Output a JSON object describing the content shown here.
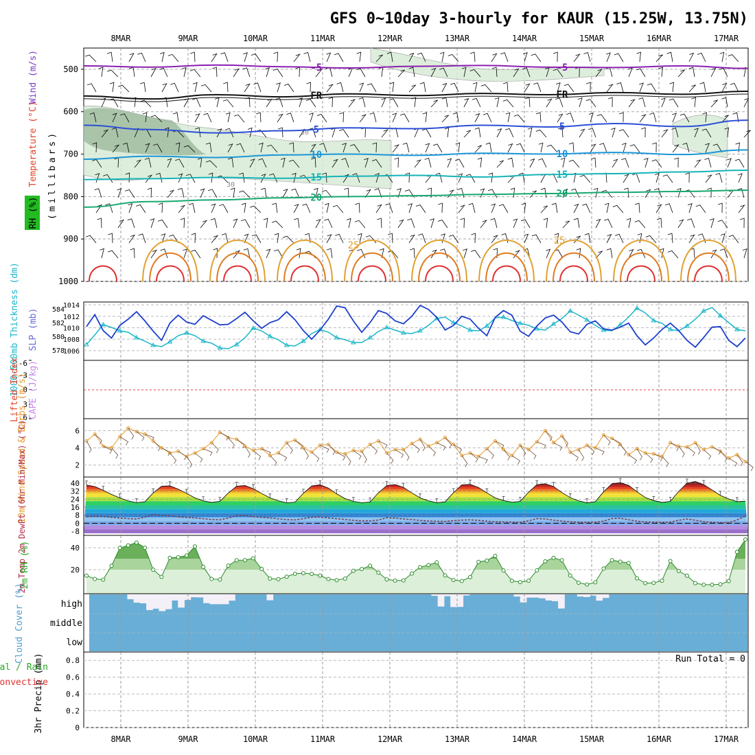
{
  "chart_data": {
    "type": "meteogram",
    "title": "GFS 0~10day 3-hourly for KAUR (15.25W, 13.75N)",
    "dates": [
      "8MAR",
      "9MAR",
      "10MAR",
      "11MAR",
      "12MAR",
      "13MAR",
      "14MAR",
      "15MAR",
      "16MAR",
      "17MAR"
    ],
    "sounding": {
      "ylabel": "(millibars)",
      "legend": [
        "RH (%)",
        "Temperature (°C)",
        "Wind (m/s)"
      ],
      "legend_colors": [
        "#22aa22",
        "#e0442a",
        "#8844cc"
      ],
      "pressure_ticks": [
        500,
        600,
        700,
        800,
        900,
        1000
      ],
      "ylim": [
        450,
        1000
      ],
      "isotherms": [
        {
          "label": "-5",
          "color": "#8b1fb0",
          "p": [
            492,
            495,
            490,
            494,
            497,
            493,
            491,
            495,
            496,
            492,
            498
          ]
        },
        {
          "label": "FR",
          "color": "#111111",
          "p": [
            563,
            570,
            560,
            565,
            558,
            562,
            557,
            560,
            555,
            559,
            552
          ]
        },
        {
          "label": "5",
          "color": "#2c4fd6",
          "p": [
            632,
            642,
            650,
            645,
            638,
            640,
            632,
            636,
            628,
            635,
            620
          ]
        },
        {
          "label": "10",
          "color": "#1b96d8",
          "p": [
            712,
            705,
            708,
            702,
            700,
            703,
            698,
            700,
            696,
            701,
            690
          ]
        },
        {
          "label": "15",
          "color": "#15b3b8",
          "p": [
            760,
            758,
            755,
            757,
            752,
            750,
            754,
            748,
            746,
            742,
            738
          ]
        },
        {
          "label": "20",
          "color": "#16a870",
          "p": [
            825,
            812,
            808,
            803,
            800,
            798,
            795,
            793,
            790,
            788,
            785
          ]
        }
      ],
      "rh_labels": [
        "30",
        "30"
      ]
    },
    "thickness_slp": {
      "ylabel_left": "1000-500mb Thickness (dm)",
      "ylabel_right": "SLP (mb)",
      "left_ticks": [
        578,
        580,
        582,
        584
      ],
      "right_ticks": [
        1006,
        1008,
        1010,
        1012,
        1014
      ],
      "thickness_dm": [
        578.8,
        580.2,
        581.7,
        581.3,
        580.8,
        580.6,
        579.8,
        579.3,
        578.7,
        578.5,
        579.2,
        580.1,
        580.5,
        580.1,
        579.3,
        579.0,
        578.3,
        578.2,
        578.8,
        579.8,
        581.2,
        580.8,
        580.0,
        579.5,
        578.7,
        578.6,
        579.3,
        580.4,
        581.0,
        580.6,
        579.8,
        579.5,
        579.1,
        579.1,
        579.8,
        580.7,
        581.3,
        580.9,
        580.5,
        580.4,
        580.8,
        581.6,
        582.6,
        582.8,
        582.0,
        581.5,
        580.9,
        580.8,
        581.5,
        582.7,
        582.8,
        582.3,
        581.9,
        581.6,
        581.1,
        580.9,
        581.8,
        582.6,
        583.7,
        583.1,
        582.4,
        581.6,
        580.9,
        580.8,
        581.7,
        582.8,
        584.1,
        583.4,
        582.3,
        581.9,
        581.0,
        580.8,
        581.5,
        582.5,
        583.7,
        584.2,
        583.0,
        582.0,
        581.0,
        580.8
      ],
      "slp_mb": [
        1010.2,
        1012.3,
        1009.5,
        1008.2,
        1010.4,
        1011.5,
        1012.8,
        1011.2,
        1009.4,
        1007.8,
        1010.8,
        1012.2,
        1011.0,
        1010.6,
        1012.1,
        1011.3,
        1010.5,
        1010.6,
        1011.6,
        1012.7,
        1011.2,
        1009.9,
        1010.9,
        1011.4,
        1012.8,
        1011.4,
        1009.5,
        1008.0,
        1009.6,
        1011.5,
        1013.8,
        1013.5,
        1011.2,
        1009.2,
        1010.9,
        1013.0,
        1012.5,
        1011.2,
        1010.7,
        1012.0,
        1013.9,
        1013.2,
        1011.8,
        1009.6,
        1010.4,
        1012.0,
        1011.5,
        1009.9,
        1008.6,
        1011.8,
        1013.0,
        1012.2,
        1009.4,
        1008.5,
        1010.3,
        1011.7,
        1012.2,
        1011.0,
        1009.3,
        1008.9,
        1010.6,
        1011.2,
        1009.8,
        1009.6,
        1010.1,
        1010.8,
        1008.6,
        1007.0,
        1008.2,
        1009.7,
        1010.8,
        1009.5,
        1007.8,
        1006.6,
        1008.3,
        1010.1,
        1010.2,
        1007.8,
        1006.7,
        1008.2
      ]
    },
    "cape_li": {
      "ylabel_left": "Lifted Index",
      "ylabel_right": "CAPE (J/kg)",
      "li_ticks": [
        -6,
        -3,
        0,
        3,
        6
      ],
      "li_ticks_text": [
        "-6",
        "-3",
        "0",
        "3",
        "6"
      ]
    },
    "wind10m": {
      "ylabel": "10m Wind Speed & Barbs (m/s)",
      "ticks": [
        2,
        4,
        6
      ],
      "speed_ms": [
        4.8,
        5.6,
        4.2,
        4.0,
        5.3,
        6.3,
        5.9,
        5.6,
        4.8,
        4.0,
        3.4,
        3.6,
        3.0,
        3.4,
        3.9,
        4.6,
        5.8,
        5.2,
        5.0,
        4.2,
        3.7,
        3.9,
        3.1,
        3.4,
        4.6,
        4.9,
        4.0,
        3.5,
        4.3,
        4.4,
        3.5,
        3.3,
        3.7,
        3.6,
        4.4,
        4.8,
        3.4,
        3.8,
        3.8,
        4.5,
        5.0,
        4.2,
        4.6,
        5.2,
        4.4,
        3.1,
        3.4,
        3.0,
        3.9,
        4.8,
        3.8,
        3.1,
        4.3,
        3.8,
        4.7,
        6.0,
        4.6,
        5.4,
        3.5,
        3.8,
        4.3,
        4.0,
        5.5,
        5.1,
        4.4,
        3.2,
        3.9,
        3.4,
        3.3,
        3.0,
        4.6,
        4.2,
        4.1,
        4.6,
        3.8,
        4.1,
        3.6,
        2.8,
        3.2,
        2.4
      ]
    },
    "temp2m": {
      "ylabel": "2m Temp 2m DewPt (6hr Min/Max) (°C)",
      "ticks": [
        -8,
        0,
        8,
        16,
        24,
        32,
        40
      ],
      "ticks_text": [
        "-8",
        "0",
        "8",
        "16",
        "24",
        "32",
        "40"
      ],
      "temp_c": [
        38.0,
        36.6,
        32.9,
        28.7,
        25.2,
        22.3,
        20.5,
        21.5,
        30.2,
        36.9,
        37.2,
        34.0,
        29.7,
        25.3,
        22.3,
        20.8,
        21.8,
        30.1,
        36.9,
        37.6,
        34.4,
        29.7,
        25.3,
        22.4,
        20.4,
        21.0,
        29.8,
        37.2,
        38.3,
        35.0,
        29.2,
        24.6,
        21.8,
        20.5,
        21.2,
        30.3,
        37.5,
        38.6,
        35.7,
        30.3,
        25.3,
        22.4,
        20.4,
        21.4,
        30.4,
        38.3,
        38.8,
        35.6,
        30.3,
        25.3,
        22.6,
        21.0,
        21.8,
        30.9,
        38.4,
        39.4,
        36.6,
        30.6,
        25.5,
        22.4,
        20.3,
        21.5,
        31.3,
        39.4,
        40.5,
        37.8,
        31.4,
        25.6,
        22.6,
        20.8,
        21.8,
        31.7,
        40.0,
        41.6,
        38.5,
        33.2,
        27.7,
        24.3,
        21.5,
        22.0
      ],
      "dewpt_c": [
        6.5,
        7.2,
        6.8,
        5.9,
        5.2,
        4.6,
        4.2,
        6.1,
        8.7,
        7.8,
        7.4,
        6.3,
        5.8,
        5.3,
        4.5,
        3.8,
        3.4,
        5.2,
        7.6,
        7.8,
        6.6,
        5.9,
        5.3,
        4.4,
        3.6,
        3.3,
        4.5,
        6.0,
        6.2,
        5.3,
        4.5,
        3.8,
        2.9,
        2.4,
        2.4,
        3.2,
        5.5,
        5.1,
        4.3,
        3.7,
        2.8,
        2.3,
        2.0,
        1.9,
        2.6,
        3.1,
        3.4,
        2.9,
        2.1,
        1.5,
        1.3,
        1.1,
        1.0,
        2.5,
        4.6,
        4.3,
        3.1,
        2.2,
        1.5,
        1.1,
        0.9,
        1.0,
        2.2,
        4.6,
        5.0,
        3.5,
        2.1,
        1.3,
        1.1,
        0.9,
        1.2,
        3.0,
        4.3,
        3.0,
        1.6,
        0.9,
        0.6,
        0.6,
        3.3,
        7.3
      ]
    },
    "rh2m": {
      "ylabel": "2m RH (%)",
      "ticks": [
        20,
        40
      ],
      "rh_pct": [
        14.6,
        11.6,
        10.9,
        23.5,
        39.8,
        42.1,
        44.7,
        40.0,
        20.0,
        13.4,
        30.8,
        31.3,
        32.9,
        41.2,
        22.6,
        11.6,
        11.0,
        23.7,
        28.6,
        28.7,
        30.4,
        20.7,
        11.9,
        11.3,
        13.6,
        16.3,
        16.8,
        16.2,
        14.6,
        11.5,
        10.5,
        11.9,
        19.0,
        20.6,
        23.6,
        17.3,
        11.2,
        10.1,
        10.2,
        16.5,
        22.3,
        24.2,
        26.7,
        14.8,
        10.6,
        9.7,
        13.2,
        27.1,
        28.3,
        32.6,
        19.3,
        9.9,
        8.7,
        9.9,
        19.4,
        27.6,
        30.8,
        28.6,
        14.7,
        8.1,
        6.5,
        8.5,
        21.0,
        28.7,
        27.3,
        26.1,
        12.1,
        7.7,
        8.0,
        10.0,
        27.8,
        18.8,
        14.5,
        7.7,
        6.3,
        6.3,
        6.7,
        9.6,
        36.2,
        47.5
      ]
    },
    "cloud": {
      "ylabel": "Cloud Cover (%)",
      "levels": [
        "high",
        "middle",
        "low"
      ],
      "high_clear_frac": [
        0.0,
        0.0,
        0.0,
        0.0,
        0.0,
        0.0,
        0.27,
        0.46,
        0.5,
        0.88,
        0.8,
        0.94,
        0.83,
        0.34,
        0.74,
        0.31,
        0.16,
        0.17,
        0.49,
        0.55,
        0.55,
        0.55,
        0.35,
        0.0,
        0.0,
        0.0,
        0.0,
        0.0,
        0.33,
        0.0,
        0.0,
        0.0,
        0.0,
        0.0,
        0.0,
        0.0,
        0.0,
        0.0,
        0.0,
        0.0,
        0.0,
        0.0,
        0.0,
        0.0,
        0.0,
        0.0,
        0.0,
        0.0,
        0.0,
        0.0,
        0.0,
        0.0,
        0.0,
        0.0,
        0.08,
        0.68,
        0.1,
        0.71,
        0.7,
        0.06,
        0.0,
        0.0,
        0.0,
        0.0,
        0.0,
        0.0,
        0.0,
        0.12,
        0.45,
        0.18,
        0.18,
        0.22,
        0.34,
        0.38,
        0.79,
        0.0,
        0.0,
        0.12,
        0.15,
        0.07,
        0.35,
        0.2,
        0.0,
        0.0,
        0.0,
        0.0,
        0.0,
        0.0,
        0.0,
        0.0,
        0.0,
        0.0,
        0.0,
        0.0,
        0.0,
        0.0,
        0.0,
        0.0,
        0.0,
        0.0,
        0.0,
        0.0,
        0.0,
        0.0
      ]
    },
    "precip": {
      "ylabel": "3hr Precip (mm)",
      "legend_total": "Total / Rain",
      "legend_convective": "Convective",
      "ticks": [
        "0",
        "0.2",
        "0.4",
        "0.6",
        "0.8"
      ],
      "run_total": "Run Total = 0"
    }
  }
}
